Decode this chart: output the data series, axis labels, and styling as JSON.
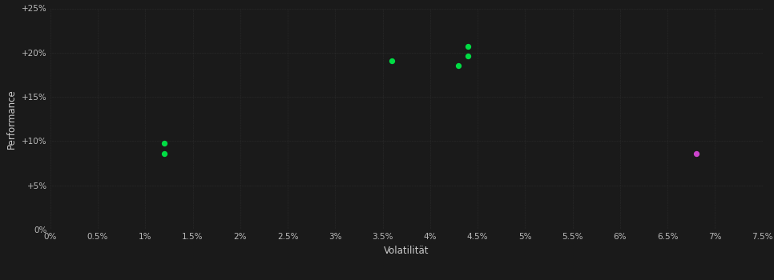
{
  "background_color": "#1a1a1a",
  "plot_bg_color": "#1a1a1a",
  "grid_color": "#3a3a3a",
  "tick_color": "#bbbbbb",
  "label_color": "#cccccc",
  "xlabel": "Volatilität",
  "ylabel": "Performance",
  "xlim": [
    0.0,
    0.075
  ],
  "ylim": [
    0.0,
    0.25
  ],
  "xticks": [
    0.0,
    0.005,
    0.01,
    0.015,
    0.02,
    0.025,
    0.03,
    0.035,
    0.04,
    0.045,
    0.05,
    0.055,
    0.06,
    0.065,
    0.07,
    0.075
  ],
  "yticks": [
    0.0,
    0.05,
    0.1,
    0.15,
    0.2,
    0.25
  ],
  "green_points": [
    [
      0.012,
      0.098
    ],
    [
      0.012,
      0.086
    ],
    [
      0.036,
      0.191
    ],
    [
      0.044,
      0.207
    ],
    [
      0.044,
      0.196
    ],
    [
      0.043,
      0.185
    ]
  ],
  "magenta_points": [
    [
      0.068,
      0.086
    ]
  ],
  "green_color": "#00dd44",
  "magenta_color": "#cc44cc",
  "point_size": 18,
  "figsize": [
    9.66,
    3.5
  ],
  "dpi": 100
}
